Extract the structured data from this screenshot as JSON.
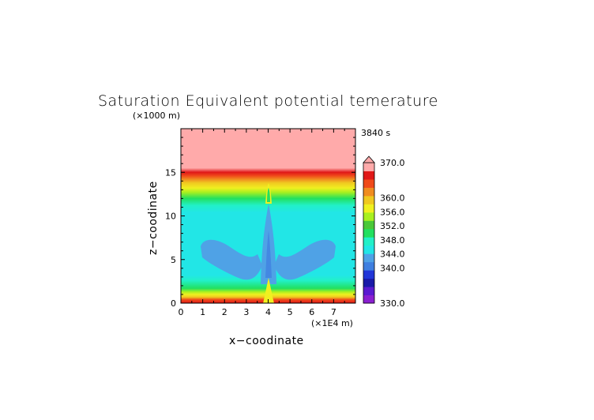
{
  "chart_data": {
    "type": "heatmap",
    "title": "Saturation Equivalent potential temerature",
    "time_label": "3840 s",
    "xlabel": "x−coodinate",
    "ylabel": "z−coodinate",
    "x_unit": "(×1E4 m)",
    "y_unit": "(×1000 m)",
    "xlim": [
      0,
      8
    ],
    "ylim": [
      0,
      20
    ],
    "x_ticks": [
      "0",
      "1",
      "2",
      "3",
      "4",
      "5",
      "6",
      "7"
    ],
    "y_ticks": [
      "0",
      "5",
      "10",
      "15"
    ],
    "colorbar": {
      "min": 330,
      "max": 370,
      "labels": [
        "370.0",
        "360.0",
        "356.0",
        "352.0",
        "348.0",
        "344.0",
        "340.0",
        "330.0"
      ],
      "colors": [
        "#8a1fd0",
        "#5a1ad0",
        "#1a1aa8",
        "#2236d8",
        "#3f7fe0",
        "#4fa2e6",
        "#22e6e6",
        "#22f0c8",
        "#22e060",
        "#4ac838",
        "#a8f020",
        "#f0f020",
        "#f0c820",
        "#f08c20",
        "#f04a1a",
        "#e01818",
        "#ffaaaa"
      ]
    },
    "zones": [
      {
        "z": [
          0.0,
          0.5
        ],
        "value": 364
      },
      {
        "z": [
          0.5,
          1.2
        ],
        "value": 352
      },
      {
        "z": [
          1.2,
          2.8
        ],
        "value": 348
      },
      {
        "z": [
          2.8,
          6.5
        ],
        "value": 343
      },
      {
        "z": [
          6.5,
          10.5
        ],
        "value": 344
      },
      {
        "z": [
          10.5,
          12.5
        ],
        "value": 348
      },
      {
        "z": [
          12.5,
          14.5
        ],
        "value": 354
      },
      {
        "z": [
          14.5,
          15.5
        ],
        "value": 360
      },
      {
        "z": [
          15.5,
          20.0
        ],
        "value": 370
      }
    ]
  }
}
